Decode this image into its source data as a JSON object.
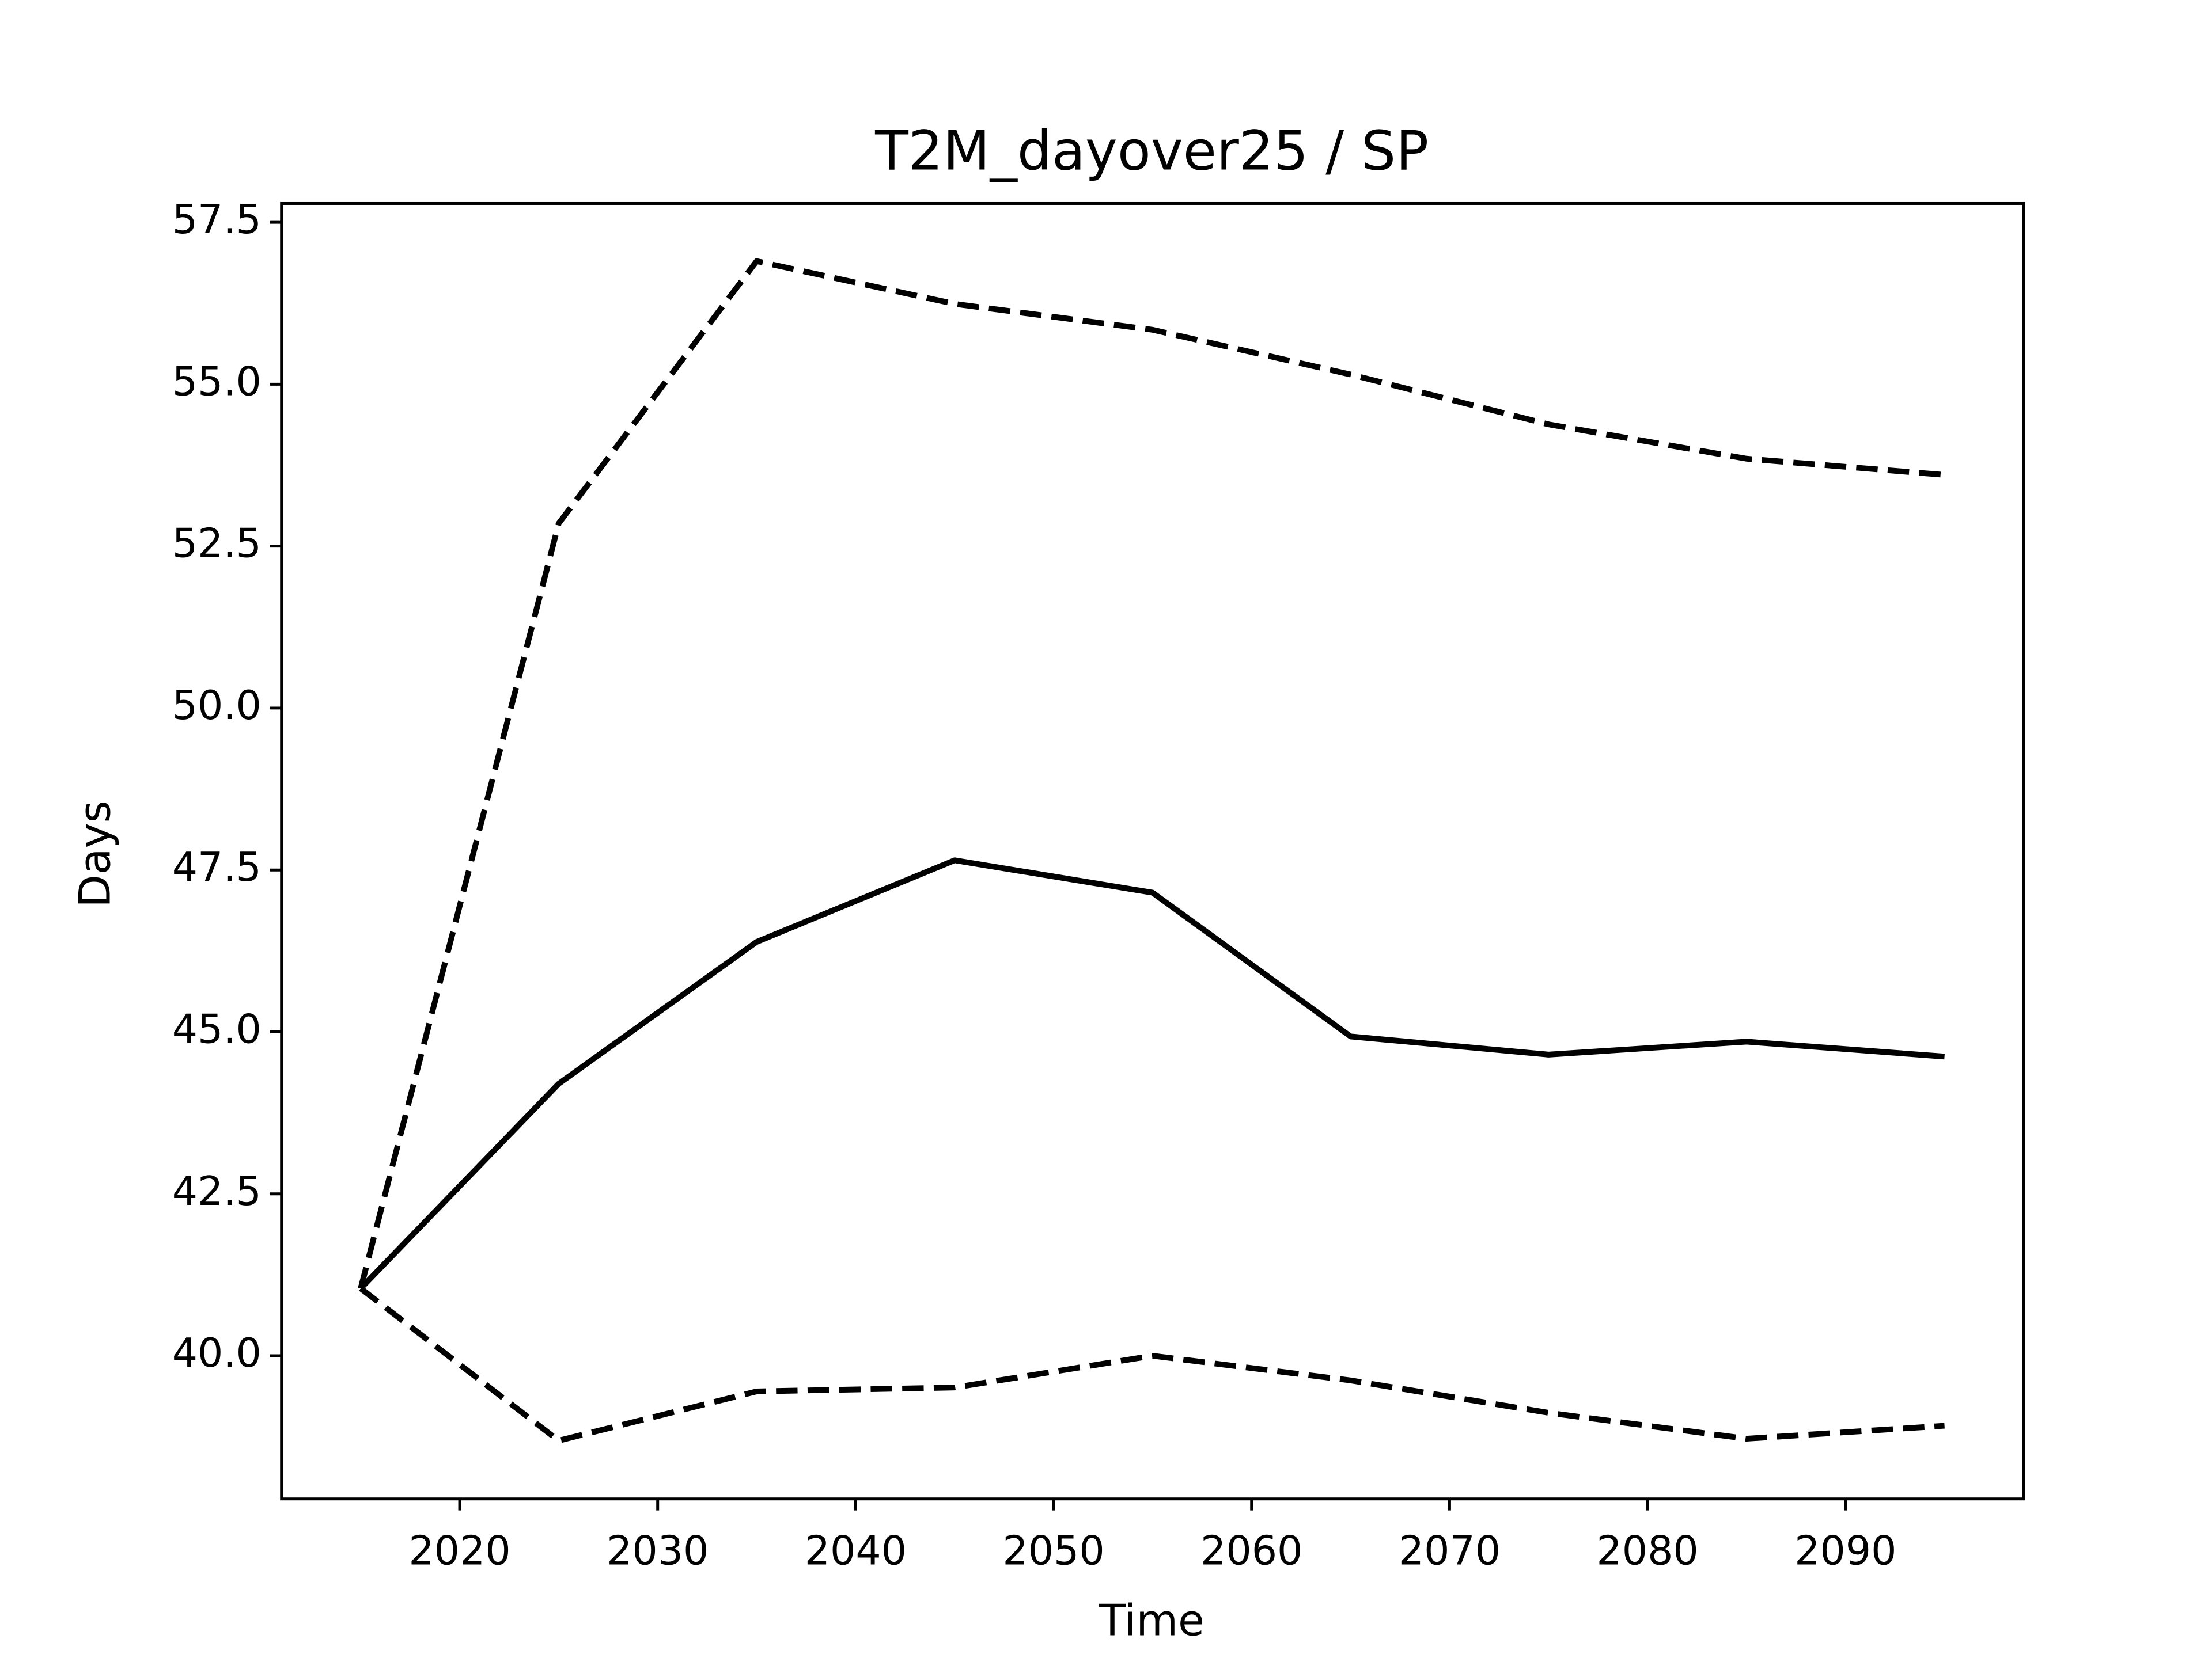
{
  "chart_data": {
    "type": "line",
    "title": "T2M_dayover25 / SP",
    "x_label": "Time",
    "y_label": "Days",
    "x": [
      2015,
      2025,
      2035,
      2045,
      2055,
      2065,
      2075,
      2085,
      2095
    ],
    "series": [
      {
        "color": "#000000",
        "dash": false,
        "values": [
          41.04,
          44.2,
          46.39,
          47.65,
          47.15,
          44.93,
          44.65,
          44.85,
          44.62
        ]
      },
      {
        "color": "#000000",
        "dash": true,
        "values": [
          41.04,
          52.85,
          56.9,
          56.24,
          55.84,
          55.15,
          54.38,
          53.85,
          53.6
        ]
      },
      {
        "color": "#000000",
        "dash": true,
        "values": [
          41.04,
          38.69,
          39.45,
          39.51,
          40.0,
          39.62,
          39.12,
          38.72,
          38.92
        ]
      }
    ],
    "xlim": [
      2011,
      2099
    ],
    "ylim": [
      37.79,
      57.79
    ],
    "xticks": [
      2020,
      2030,
      2040,
      2050,
      2060,
      2070,
      2080,
      2090
    ],
    "yticks": [
      {
        "value": 40,
        "label": "40.0"
      },
      42.5,
      {
        "value": 45,
        "label": "45.0"
      },
      47.5,
      {
        "value": 50,
        "label": "50.0"
      },
      52.5,
      {
        "value": 55,
        "label": "55.0"
      },
      57.5
    ],
    "grid": false
  }
}
